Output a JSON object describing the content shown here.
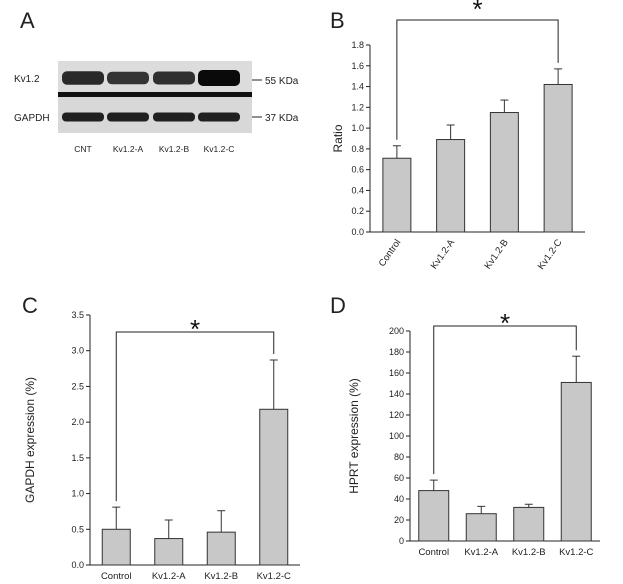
{
  "panels": {
    "a": "A",
    "b": "B",
    "c": "C",
    "d": "D"
  },
  "blot": {
    "top_label": "Kv1.2",
    "bottom_label": "GAPDH",
    "marker_top": "55 KDa",
    "marker_bottom": "37 KDa",
    "lanes": [
      "CNT",
      "Kv1.2-A",
      "Kv1.2-B",
      "Kv1.2-C"
    ],
    "kv12_intensity": [
      0.72,
      0.62,
      0.66,
      1.0
    ],
    "gapdh_intensity": [
      0.8,
      0.8,
      0.8,
      0.8
    ]
  },
  "significance_mark": "*",
  "chart_data": [
    {
      "id": "B",
      "type": "bar",
      "categories": [
        "Control",
        "Kv1.2-A",
        "Kv1.2-B",
        "Kv1.2-C"
      ],
      "values": [
        0.71,
        0.89,
        1.15,
        1.42
      ],
      "errors": [
        0.12,
        0.14,
        0.12,
        0.15
      ],
      "ylabel": "Ratio",
      "xlabel": "",
      "ylim": [
        0,
        1.8
      ],
      "yticks": [
        "0.0",
        "0.2",
        "0.4",
        "0.6",
        "0.8",
        "1.0",
        "1.2",
        "1.4",
        "1.6",
        "1.8"
      ],
      "rotated_categories": true,
      "bar_color": "#c8c8c8"
    },
    {
      "id": "C",
      "type": "bar",
      "categories": [
        "Control",
        "Kv1.2-A",
        "Kv1.2-B",
        "Kv1.2-C"
      ],
      "values": [
        0.5,
        0.37,
        0.46,
        2.18
      ],
      "errors": [
        0.31,
        0.26,
        0.3,
        0.69
      ],
      "ylabel": "GAPDH expression (%)",
      "xlabel": "",
      "ylim": [
        0,
        3.5
      ],
      "yticks": [
        "0.0",
        "0.5",
        "1.0",
        "1.5",
        "2.0",
        "2.5",
        "3.0",
        "3.5"
      ],
      "rotated_categories": false,
      "bar_color": "#c8c8c8"
    },
    {
      "id": "D",
      "type": "bar",
      "categories": [
        "Control",
        "Kv1.2-A",
        "Kv1.2-B",
        "Kv1.2-C"
      ],
      "values": [
        48,
        26,
        32,
        151
      ],
      "errors": [
        10,
        7,
        3,
        25
      ],
      "ylabel": "HPRT expression (%)",
      "xlabel": "",
      "ylim": [
        0,
        200
      ],
      "yticks": [
        "0",
        "20",
        "40",
        "60",
        "80",
        "100",
        "120",
        "140",
        "160",
        "180",
        "200"
      ],
      "rotated_categories": false,
      "bar_color": "#c8c8c8"
    }
  ]
}
